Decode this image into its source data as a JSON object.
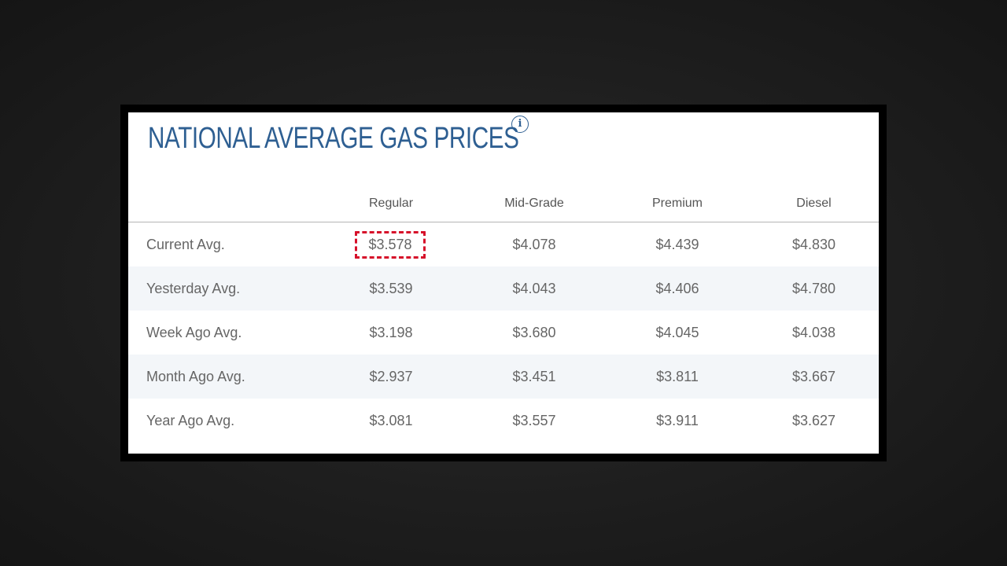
{
  "title": "NATIONAL AVERAGE GAS PRICES",
  "info_icon": "info-icon",
  "columns": [
    "",
    "Regular",
    "Mid-Grade",
    "Premium",
    "Diesel"
  ],
  "rows": [
    {
      "label": "Current Avg.",
      "regular": "$3.578",
      "mid_grade": "$4.078",
      "premium": "$4.439",
      "diesel": "$4.830"
    },
    {
      "label": "Yesterday Avg.",
      "regular": "$3.539",
      "mid_grade": "$4.043",
      "premium": "$4.406",
      "diesel": "$4.780"
    },
    {
      "label": "Week Ago Avg.",
      "regular": "$3.198",
      "mid_grade": "$3.680",
      "premium": "$4.045",
      "diesel": "$4.038"
    },
    {
      "label": "Month Ago Avg.",
      "regular": "$2.937",
      "mid_grade": "$3.451",
      "premium": "$3.811",
      "diesel": "$3.667"
    },
    {
      "label": "Year Ago Avg.",
      "regular": "$3.081",
      "mid_grade": "$3.557",
      "premium": "$3.911",
      "diesel": "$3.627"
    }
  ],
  "highlighted_cell": "rows.0.regular",
  "colors": {
    "title": "#2e5f92",
    "highlight_border": "#d6102a",
    "alt_row": "#f3f6f9",
    "frame": "#000000"
  }
}
